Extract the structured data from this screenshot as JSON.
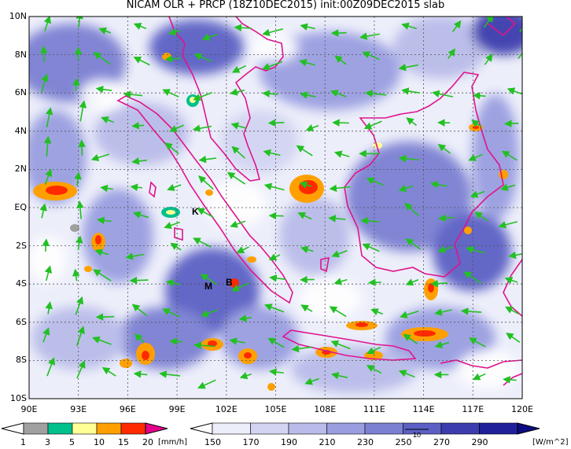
{
  "title": "NICAM OLR + PRCP (18Z10DEC2015) init:00Z09DEC2015 slab",
  "y_ticks": [
    "10N",
    "8N",
    "6N",
    "4N",
    "2N",
    "EQ",
    "2S",
    "4S",
    "6S",
    "8S",
    "10S"
  ],
  "x_ticks": [
    "90E",
    "93E",
    "96E",
    "99E",
    "102E",
    "105E",
    "108E",
    "111E",
    "114E",
    "117E",
    "120E"
  ],
  "place_labels": [
    "K",
    "M",
    "B"
  ],
  "precip_legend": {
    "unit": "[mm/h]",
    "labels": [
      "1",
      "3",
      "5",
      "10",
      "15",
      "20"
    ],
    "colors": [
      "#ffffff",
      "#a0a0a0",
      "#00c08c",
      "#ffff96",
      "#ffa000",
      "#ff2a00",
      "#e6008c"
    ]
  },
  "olr_legend": {
    "unit": "[W/m^2]",
    "labels": [
      "150",
      "170",
      "190",
      "210",
      "230",
      "250",
      "270",
      "290"
    ],
    "colors": [
      "#ffffff",
      "#eceefa",
      "#d2d4f2",
      "#b9bce9",
      "#9a9ee0",
      "#7c80d2",
      "#5c60c4",
      "#3c3cae",
      "#20209a",
      "#0c0c80"
    ],
    "vector_ref": "10"
  },
  "colors": {
    "coast": "#e0148c",
    "wind": "#22c022"
  }
}
